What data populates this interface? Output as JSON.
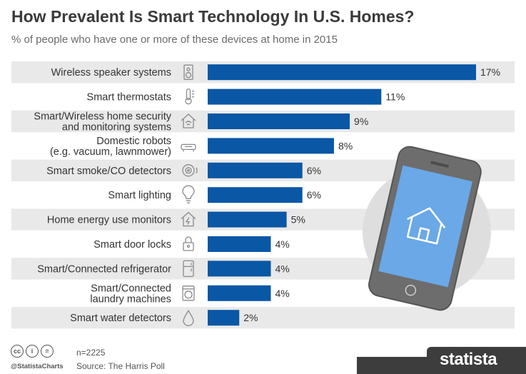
{
  "header": {
    "title": "How Prevalent Is Smart Technology In U.S. Homes?",
    "subtitle": "% of people who have one or more of these devices at home in 2015"
  },
  "footer": {
    "sample": "n=2225",
    "source": "Source: The Harris Poll",
    "handle": "@StatistaCharts",
    "brand": "statista"
  },
  "colors": {
    "bar": "#0a57a6",
    "stripe": "#e9e9e9",
    "text": "#333333",
    "icon": "#8a8a8a",
    "phone_circle": "#dedede",
    "phone_screen": "#6aa8e8"
  },
  "chart_data": {
    "type": "bar",
    "orientation": "horizontal",
    "unit": "%",
    "categories": [
      [
        "Wireless speaker systems"
      ],
      [
        "Smart thermostats"
      ],
      [
        "Smart/Wireless home security",
        "and monitoring systems"
      ],
      [
        "Domestic robots",
        "(e.g. vacuum, lawnmower)"
      ],
      [
        "Smart smoke/CO detectors"
      ],
      [
        "Smart lighting"
      ],
      [
        "Home energy use monitors"
      ],
      [
        "Smart door locks"
      ],
      [
        "Smart/Connected refrigerator"
      ],
      [
        "Smart/Connected",
        "laundry machines"
      ],
      [
        "Smart water detectors"
      ]
    ],
    "icons": [
      "speaker-icon",
      "thermometer-icon",
      "home-security-icon",
      "robot-vacuum-icon",
      "smoke-detector-icon",
      "lightbulb-icon",
      "energy-monitor-icon",
      "door-lock-icon",
      "refrigerator-icon",
      "washing-machine-icon",
      "water-drop-icon"
    ],
    "values": [
      17,
      11,
      9,
      8,
      6,
      6,
      5,
      4,
      4,
      4,
      2
    ],
    "labels": [
      "17%",
      "11%",
      "9%",
      "8%",
      "6%",
      "6%",
      "5%",
      "4%",
      "4%",
      "4%",
      "2%"
    ],
    "xlim": [
      0,
      17
    ],
    "grid": false,
    "legend": "none"
  }
}
